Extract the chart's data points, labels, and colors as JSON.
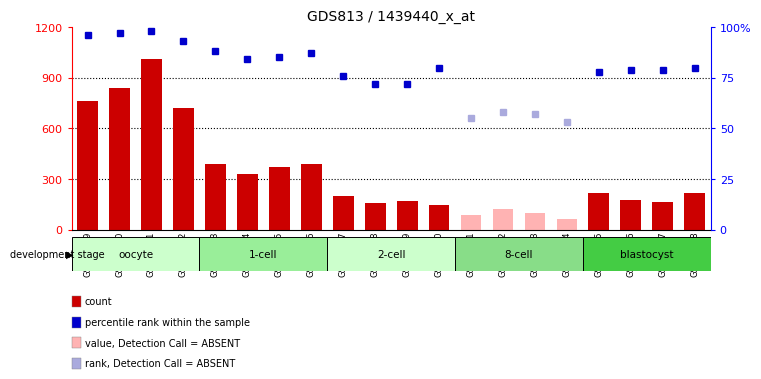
{
  "title": "GDS813 / 1439440_x_at",
  "samples": [
    "GSM22649",
    "GSM22650",
    "GSM22651",
    "GSM22652",
    "GSM22653",
    "GSM22654",
    "GSM22655",
    "GSM22656",
    "GSM22657",
    "GSM22658",
    "GSM22659",
    "GSM22660",
    "GSM22661",
    "GSM22662",
    "GSM22663",
    "GSM22664",
    "GSM22665",
    "GSM22666",
    "GSM22667",
    "GSM22668"
  ],
  "bar_values": [
    760,
    840,
    1010,
    720,
    390,
    330,
    370,
    390,
    200,
    155,
    170,
    145,
    null,
    null,
    null,
    null,
    215,
    175,
    165,
    215
  ],
  "bar_values_absent": [
    null,
    null,
    null,
    null,
    null,
    null,
    null,
    null,
    null,
    null,
    null,
    null,
    85,
    120,
    95,
    60,
    null,
    null,
    null,
    null
  ],
  "rank_values": [
    96,
    97,
    98,
    93,
    88,
    84,
    85,
    87,
    76,
    72,
    72,
    80,
    null,
    null,
    null,
    null,
    78,
    79,
    79,
    80
  ],
  "rank_values_absent": [
    null,
    null,
    null,
    null,
    null,
    null,
    null,
    null,
    null,
    null,
    null,
    null,
    55,
    58,
    57,
    53,
    null,
    null,
    null,
    null
  ],
  "bar_color": "#cc0000",
  "bar_absent_color": "#ffb3b3",
  "rank_color": "#0000cc",
  "rank_absent_color": "#aaaadd",
  "ylim_left": [
    0,
    1200
  ],
  "ylim_right": [
    0,
    100
  ],
  "yticks_left": [
    0,
    300,
    600,
    900,
    1200
  ],
  "yticks_right": [
    0,
    25,
    50,
    75,
    100
  ],
  "yticklabels_right": [
    "0",
    "25",
    "50",
    "75",
    "100%"
  ],
  "groups": [
    {
      "label": "oocyte",
      "start": 0,
      "end": 3,
      "color": "#ccffcc"
    },
    {
      "label": "1-cell",
      "start": 4,
      "end": 7,
      "color": "#99ee99"
    },
    {
      "label": "2-cell",
      "start": 8,
      "end": 11,
      "color": "#ccffcc"
    },
    {
      "label": "8-cell",
      "start": 12,
      "end": 15,
      "color": "#88dd88"
    },
    {
      "label": "blastocyst",
      "start": 16,
      "end": 19,
      "color": "#44cc44"
    }
  ],
  "legend_items": [
    {
      "label": "count",
      "color": "#cc0000"
    },
    {
      "label": "percentile rank within the sample",
      "color": "#0000cc"
    },
    {
      "label": "value, Detection Call = ABSENT",
      "color": "#ffb3b3"
    },
    {
      "label": "rank, Detection Call = ABSENT",
      "color": "#aaaadd"
    }
  ],
  "background_color": "#ffffff",
  "rank_marker_size": 5,
  "bar_width": 0.65
}
